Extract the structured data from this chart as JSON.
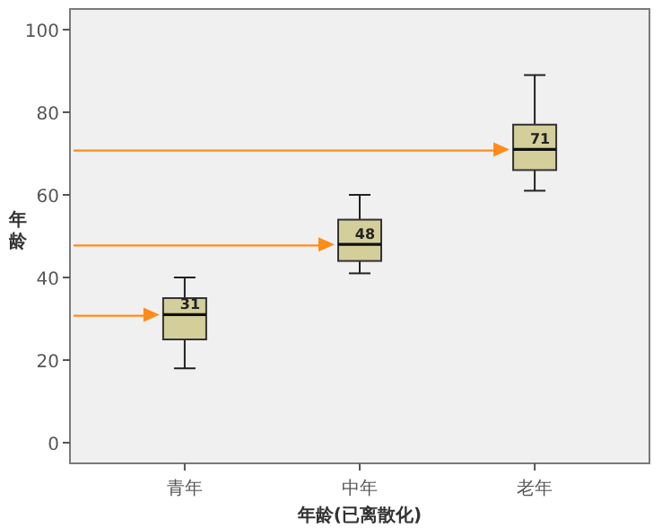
{
  "chart_data": {
    "type": "box",
    "categories": [
      "青年",
      "中年",
      "老年"
    ],
    "boxes": [
      {
        "low": 18,
        "q1": 25,
        "median": 31,
        "q3": 35,
        "high": 40
      },
      {
        "low": 41,
        "q1": 44,
        "median": 48,
        "q3": 54,
        "high": 60
      },
      {
        "low": 61,
        "q1": 66,
        "median": 71,
        "q3": 77,
        "high": 89
      }
    ],
    "color": "#d4cf9a",
    "xlabel": "年龄(已离散化)",
    "ylabel": "年龄",
    "ylim": [
      -5,
      105
    ],
    "yticks": [
      0,
      20,
      40,
      60,
      80,
      100
    ],
    "annotations": [
      {
        "text": "31",
        "x": "青年",
        "y": 31
      },
      {
        "text": "48",
        "x": "中年",
        "y": 48
      },
      {
        "text": "71",
        "x": "老年",
        "y": 71
      }
    ],
    "grid": false
  }
}
